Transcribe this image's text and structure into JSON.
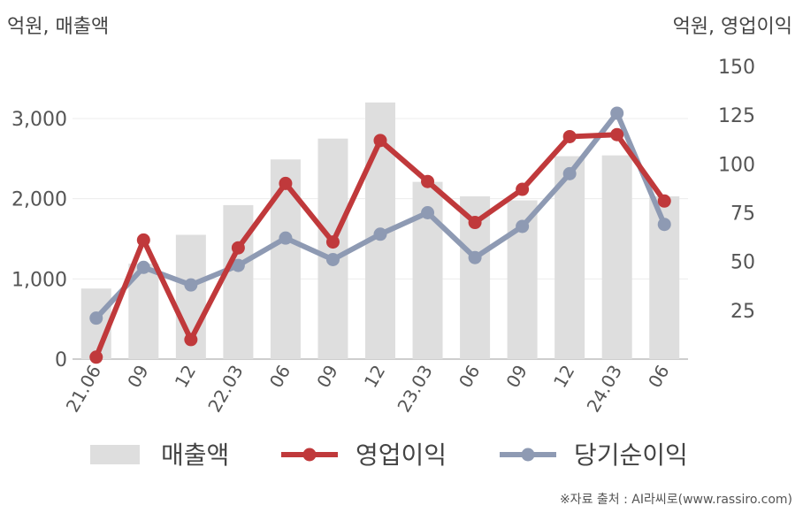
{
  "chart_data": {
    "type": "bar+line",
    "categories": [
      "21.06",
      "09",
      "12",
      "22.03",
      "06",
      "09",
      "12",
      "23.03",
      "06",
      "09",
      "12",
      "24.03",
      "06"
    ],
    "left_axis": {
      "unit_label": "억원, 매출액",
      "ylim": [
        0,
        3500
      ],
      "ticks": [
        0,
        1000,
        2000,
        3000
      ],
      "tick_labels": [
        "0",
        "1,000",
        "2,000",
        "3,000"
      ]
    },
    "right_axis": {
      "unit_label": "억원, 영업이익",
      "ylim": [
        0,
        150
      ],
      "ticks": [
        25,
        50,
        75,
        100,
        125,
        150
      ],
      "tick_labels": [
        "25",
        "50",
        "75",
        "100",
        "125",
        "150"
      ]
    },
    "series": [
      {
        "name": "매출액",
        "kind": "bar",
        "axis": "left",
        "color": "#dedede",
        "values": [
          880,
          1190,
          1550,
          1920,
          2490,
          2750,
          3200,
          2210,
          2030,
          1980,
          2530,
          2540,
          2030
        ]
      },
      {
        "name": "영업이익",
        "kind": "line",
        "axis": "right",
        "color": "#c0393b",
        "values": [
          1,
          61,
          10,
          57,
          90,
          60,
          112,
          91,
          70,
          87,
          114,
          115,
          81
        ]
      },
      {
        "name": "당기순이익",
        "kind": "line",
        "axis": "right",
        "color": "#8e9ab3",
        "values": [
          21,
          47,
          38,
          48,
          62,
          51,
          64,
          75,
          52,
          68,
          95,
          126,
          69
        ]
      }
    ],
    "grid": true,
    "legend": "bottom"
  },
  "source": "※자료 출처 : AI라씨로(www.rassiro.com)"
}
